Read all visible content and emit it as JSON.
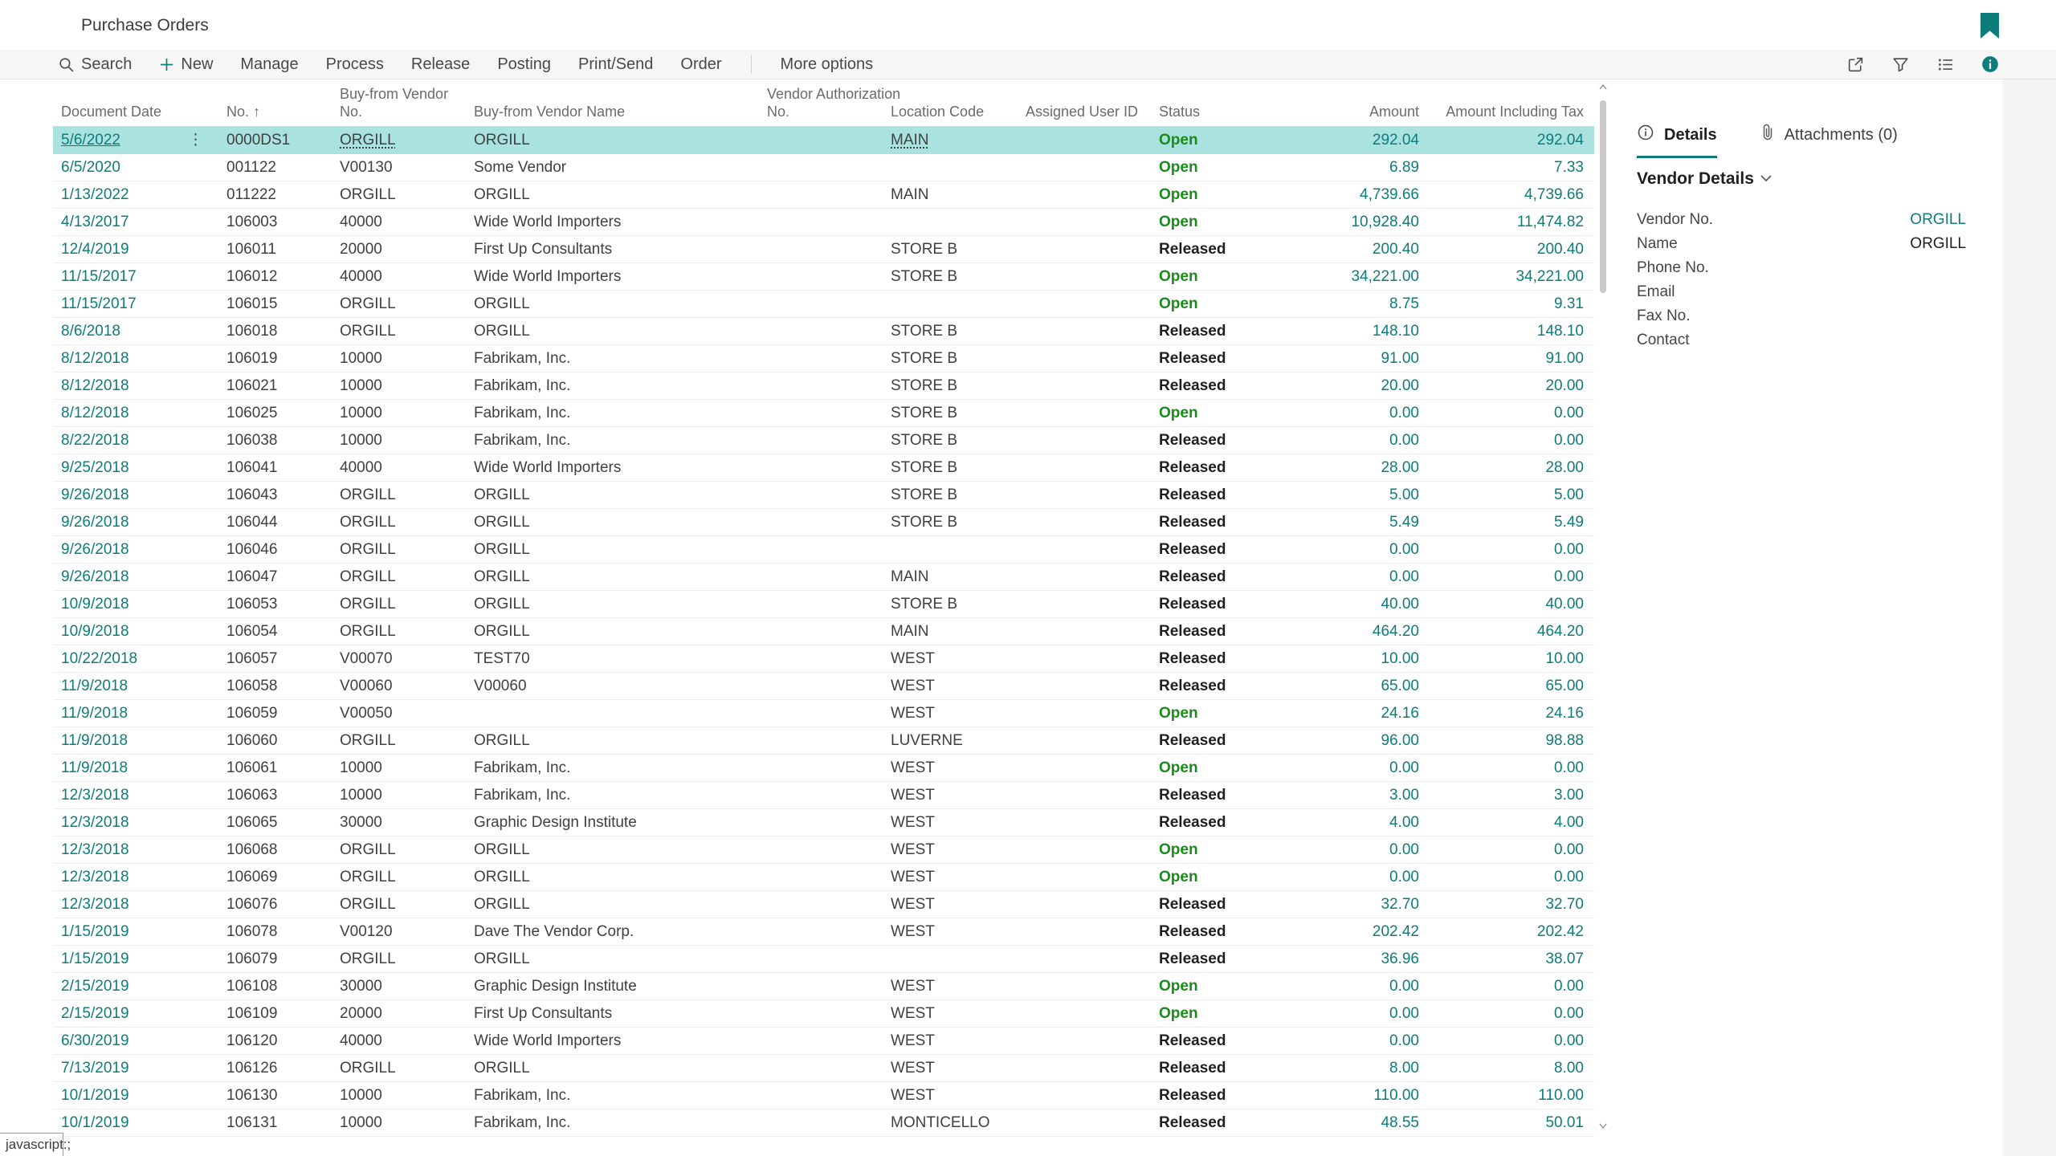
{
  "page": {
    "title": "Purchase Orders"
  },
  "action_bar": {
    "items": [
      {
        "label": "Search",
        "icon": "search"
      },
      {
        "label": "New",
        "icon": "plus"
      },
      {
        "label": "Manage"
      },
      {
        "label": "Process"
      },
      {
        "label": "Release"
      },
      {
        "label": "Posting"
      },
      {
        "label": "Print/Send"
      },
      {
        "label": "Order"
      }
    ],
    "more_label": "More options",
    "right_icons": [
      "share",
      "filter",
      "list-view",
      "info"
    ]
  },
  "table": {
    "columns": [
      {
        "key": "date",
        "label": "Document Date"
      },
      {
        "key": "no",
        "label": "No.",
        "sort_indicator": "↑"
      },
      {
        "key": "vendor_no",
        "label": "Buy-from Vendor No."
      },
      {
        "key": "vendor_name",
        "label": "Buy-from Vendor Name"
      },
      {
        "key": "auth_no",
        "label": "Vendor Authorization No."
      },
      {
        "key": "location",
        "label": "Location Code"
      },
      {
        "key": "assigned",
        "label": "Assigned User ID"
      },
      {
        "key": "status",
        "label": "Status"
      },
      {
        "key": "amount",
        "label": "Amount"
      },
      {
        "key": "amount_incl",
        "label": "Amount Including Tax"
      }
    ],
    "rows": [
      {
        "date": "5/6/2022",
        "no": "0000DS1",
        "vendor_no": "ORGILL",
        "vendor_name": "ORGILL",
        "auth_no": "",
        "location": "MAIN",
        "assigned": "",
        "status": "Open",
        "amount": "292.04",
        "amount_incl": "292.04",
        "selected": true
      },
      {
        "date": "6/5/2020",
        "no": "001122",
        "vendor_no": "V00130",
        "vendor_name": "Some Vendor",
        "auth_no": "",
        "location": "",
        "assigned": "",
        "status": "Open",
        "amount": "6.89",
        "amount_incl": "7.33"
      },
      {
        "date": "1/13/2022",
        "no": "011222",
        "vendor_no": "ORGILL",
        "vendor_name": "ORGILL",
        "auth_no": "",
        "location": "MAIN",
        "assigned": "",
        "status": "Open",
        "amount": "4,739.66",
        "amount_incl": "4,739.66"
      },
      {
        "date": "4/13/2017",
        "no": "106003",
        "vendor_no": "40000",
        "vendor_name": "Wide World Importers",
        "auth_no": "",
        "location": "",
        "assigned": "",
        "status": "Open",
        "amount": "10,928.40",
        "amount_incl": "11,474.82"
      },
      {
        "date": "12/4/2019",
        "no": "106011",
        "vendor_no": "20000",
        "vendor_name": "First Up Consultants",
        "auth_no": "",
        "location": "STORE B",
        "assigned": "",
        "status": "Released",
        "amount": "200.40",
        "amount_incl": "200.40"
      },
      {
        "date": "11/15/2017",
        "no": "106012",
        "vendor_no": "40000",
        "vendor_name": "Wide World Importers",
        "auth_no": "",
        "location": "STORE B",
        "assigned": "",
        "status": "Open",
        "amount": "34,221.00",
        "amount_incl": "34,221.00"
      },
      {
        "date": "11/15/2017",
        "no": "106015",
        "vendor_no": "ORGILL",
        "vendor_name": "ORGILL",
        "auth_no": "",
        "location": "",
        "assigned": "",
        "status": "Open",
        "amount": "8.75",
        "amount_incl": "9.31"
      },
      {
        "date": "8/6/2018",
        "no": "106018",
        "vendor_no": "ORGILL",
        "vendor_name": "ORGILL",
        "auth_no": "",
        "location": "STORE B",
        "assigned": "",
        "status": "Released",
        "amount": "148.10",
        "amount_incl": "148.10"
      },
      {
        "date": "8/12/2018",
        "no": "106019",
        "vendor_no": "10000",
        "vendor_name": "Fabrikam, Inc.",
        "auth_no": "",
        "location": "STORE B",
        "assigned": "",
        "status": "Released",
        "amount": "91.00",
        "amount_incl": "91.00"
      },
      {
        "date": "8/12/2018",
        "no": "106021",
        "vendor_no": "10000",
        "vendor_name": "Fabrikam, Inc.",
        "auth_no": "",
        "location": "STORE B",
        "assigned": "",
        "status": "Released",
        "amount": "20.00",
        "amount_incl": "20.00"
      },
      {
        "date": "8/12/2018",
        "no": "106025",
        "vendor_no": "10000",
        "vendor_name": "Fabrikam, Inc.",
        "auth_no": "",
        "location": "STORE B",
        "assigned": "",
        "status": "Open",
        "amount": "0.00",
        "amount_incl": "0.00"
      },
      {
        "date": "8/22/2018",
        "no": "106038",
        "vendor_no": "10000",
        "vendor_name": "Fabrikam, Inc.",
        "auth_no": "",
        "location": "STORE B",
        "assigned": "",
        "status": "Released",
        "amount": "0.00",
        "amount_incl": "0.00"
      },
      {
        "date": "9/25/2018",
        "no": "106041",
        "vendor_no": "40000",
        "vendor_name": "Wide World Importers",
        "auth_no": "",
        "location": "STORE B",
        "assigned": "",
        "status": "Released",
        "amount": "28.00",
        "amount_incl": "28.00"
      },
      {
        "date": "9/26/2018",
        "no": "106043",
        "vendor_no": "ORGILL",
        "vendor_name": "ORGILL",
        "auth_no": "",
        "location": "STORE B",
        "assigned": "",
        "status": "Released",
        "amount": "5.00",
        "amount_incl": "5.00"
      },
      {
        "date": "9/26/2018",
        "no": "106044",
        "vendor_no": "ORGILL",
        "vendor_name": "ORGILL",
        "auth_no": "",
        "location": "STORE B",
        "assigned": "",
        "status": "Released",
        "amount": "5.49",
        "amount_incl": "5.49"
      },
      {
        "date": "9/26/2018",
        "no": "106046",
        "vendor_no": "ORGILL",
        "vendor_name": "ORGILL",
        "auth_no": "",
        "location": "",
        "assigned": "",
        "status": "Released",
        "amount": "0.00",
        "amount_incl": "0.00"
      },
      {
        "date": "9/26/2018",
        "no": "106047",
        "vendor_no": "ORGILL",
        "vendor_name": "ORGILL",
        "auth_no": "",
        "location": "MAIN",
        "assigned": "",
        "status": "Released",
        "amount": "0.00",
        "amount_incl": "0.00"
      },
      {
        "date": "10/9/2018",
        "no": "106053",
        "vendor_no": "ORGILL",
        "vendor_name": "ORGILL",
        "auth_no": "",
        "location": "STORE B",
        "assigned": "",
        "status": "Released",
        "amount": "40.00",
        "amount_incl": "40.00"
      },
      {
        "date": "10/9/2018",
        "no": "106054",
        "vendor_no": "ORGILL",
        "vendor_name": "ORGILL",
        "auth_no": "",
        "location": "MAIN",
        "assigned": "",
        "status": "Released",
        "amount": "464.20",
        "amount_incl": "464.20"
      },
      {
        "date": "10/22/2018",
        "no": "106057",
        "vendor_no": "V00070",
        "vendor_name": "TEST70",
        "auth_no": "",
        "location": "WEST",
        "assigned": "",
        "status": "Released",
        "amount": "10.00",
        "amount_incl": "10.00"
      },
      {
        "date": "11/9/2018",
        "no": "106058",
        "vendor_no": "V00060",
        "vendor_name": "V00060",
        "auth_no": "",
        "location": "WEST",
        "assigned": "",
        "status": "Released",
        "amount": "65.00",
        "amount_incl": "65.00"
      },
      {
        "date": "11/9/2018",
        "no": "106059",
        "vendor_no": "V00050",
        "vendor_name": "",
        "auth_no": "",
        "location": "WEST",
        "assigned": "",
        "status": "Open",
        "amount": "24.16",
        "amount_incl": "24.16"
      },
      {
        "date": "11/9/2018",
        "no": "106060",
        "vendor_no": "ORGILL",
        "vendor_name": "ORGILL",
        "auth_no": "",
        "location": "LUVERNE",
        "assigned": "",
        "status": "Released",
        "amount": "96.00",
        "amount_incl": "98.88"
      },
      {
        "date": "11/9/2018",
        "no": "106061",
        "vendor_no": "10000",
        "vendor_name": "Fabrikam, Inc.",
        "auth_no": "",
        "location": "WEST",
        "assigned": "",
        "status": "Open",
        "amount": "0.00",
        "amount_incl": "0.00"
      },
      {
        "date": "12/3/2018",
        "no": "106063",
        "vendor_no": "10000",
        "vendor_name": "Fabrikam, Inc.",
        "auth_no": "",
        "location": "WEST",
        "assigned": "",
        "status": "Released",
        "amount": "3.00",
        "amount_incl": "3.00"
      },
      {
        "date": "12/3/2018",
        "no": "106065",
        "vendor_no": "30000",
        "vendor_name": "Graphic Design Institute",
        "auth_no": "",
        "location": "WEST",
        "assigned": "",
        "status": "Released",
        "amount": "4.00",
        "amount_incl": "4.00"
      },
      {
        "date": "12/3/2018",
        "no": "106068",
        "vendor_no": "ORGILL",
        "vendor_name": "ORGILL",
        "auth_no": "",
        "location": "WEST",
        "assigned": "",
        "status": "Open",
        "amount": "0.00",
        "amount_incl": "0.00"
      },
      {
        "date": "12/3/2018",
        "no": "106069",
        "vendor_no": "ORGILL",
        "vendor_name": "ORGILL",
        "auth_no": "",
        "location": "WEST",
        "assigned": "",
        "status": "Open",
        "amount": "0.00",
        "amount_incl": "0.00"
      },
      {
        "date": "12/3/2018",
        "no": "106076",
        "vendor_no": "ORGILL",
        "vendor_name": "ORGILL",
        "auth_no": "",
        "location": "WEST",
        "assigned": "",
        "status": "Released",
        "amount": "32.70",
        "amount_incl": "32.70"
      },
      {
        "date": "1/15/2019",
        "no": "106078",
        "vendor_no": "V00120",
        "vendor_name": "Dave The Vendor Corp.",
        "auth_no": "",
        "location": "WEST",
        "assigned": "",
        "status": "Released",
        "amount": "202.42",
        "amount_incl": "202.42"
      },
      {
        "date": "1/15/2019",
        "no": "106079",
        "vendor_no": "ORGILL",
        "vendor_name": "ORGILL",
        "auth_no": "",
        "location": "",
        "assigned": "",
        "status": "Released",
        "amount": "36.96",
        "amount_incl": "38.07"
      },
      {
        "date": "2/15/2019",
        "no": "106108",
        "vendor_no": "30000",
        "vendor_name": "Graphic Design Institute",
        "auth_no": "",
        "location": "WEST",
        "assigned": "",
        "status": "Open",
        "amount": "0.00",
        "amount_incl": "0.00"
      },
      {
        "date": "2/15/2019",
        "no": "106109",
        "vendor_no": "20000",
        "vendor_name": "First Up Consultants",
        "auth_no": "",
        "location": "WEST",
        "assigned": "",
        "status": "Open",
        "amount": "0.00",
        "amount_incl": "0.00"
      },
      {
        "date": "6/30/2019",
        "no": "106120",
        "vendor_no": "40000",
        "vendor_name": "Wide World Importers",
        "auth_no": "",
        "location": "WEST",
        "assigned": "",
        "status": "Released",
        "amount": "0.00",
        "amount_incl": "0.00"
      },
      {
        "date": "7/13/2019",
        "no": "106126",
        "vendor_no": "ORGILL",
        "vendor_name": "ORGILL",
        "auth_no": "",
        "location": "WEST",
        "assigned": "",
        "status": "Released",
        "amount": "8.00",
        "amount_incl": "8.00"
      },
      {
        "date": "10/1/2019",
        "no": "106130",
        "vendor_no": "10000",
        "vendor_name": "Fabrikam, Inc.",
        "auth_no": "",
        "location": "WEST",
        "assigned": "",
        "status": "Released",
        "amount": "110.00",
        "amount_incl": "110.00"
      },
      {
        "date": "10/1/2019",
        "no": "106131",
        "vendor_no": "10000",
        "vendor_name": "Fabrikam, Inc.",
        "auth_no": "",
        "location": "MONTICELLO",
        "assigned": "",
        "status": "Released",
        "amount": "48.55",
        "amount_incl": "50.01"
      }
    ]
  },
  "details_panel": {
    "tabs": [
      {
        "label": "Details",
        "icon": "info-circle",
        "active": true
      },
      {
        "label": "Attachments (0)",
        "icon": "paperclip",
        "active": false
      }
    ],
    "section_title": "Vendor Details",
    "fields": [
      {
        "label": "Vendor No.",
        "value": "ORGILL",
        "link": true
      },
      {
        "label": "Name",
        "value": "ORGILL"
      },
      {
        "label": "Phone No.",
        "value": ""
      },
      {
        "label": "Email",
        "value": ""
      },
      {
        "label": "Fax No.",
        "value": ""
      },
      {
        "label": "Contact",
        "value": ""
      }
    ]
  },
  "status_bar": {
    "tooltip": "javascript:;"
  },
  "colors": {
    "accent_teal": "#0e7c7a",
    "status_open": "#1e8a1e",
    "status_released": "#1f1f1f",
    "selected_row_bg": "#aae2e0",
    "text_dark": "#404040"
  }
}
